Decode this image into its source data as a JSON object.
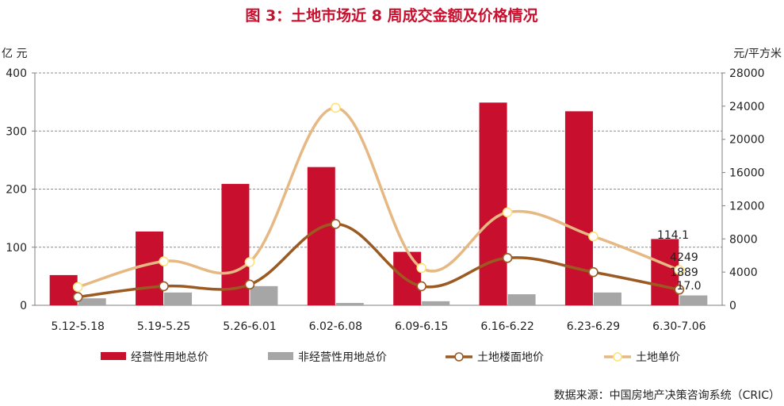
{
  "chart_data": {
    "type": "bar",
    "title": "图 3：土地市场近 8 周成交金额及价格情况",
    "left_unit": "亿 元",
    "right_unit": "元/平方米",
    "categories": [
      "5.12-5.18",
      "5.19-5.25",
      "5.26-6.01",
      "6.02-6.08",
      "6.09-6.15",
      "6.16-6.22",
      "6.23-6.29",
      "6.30-7.06"
    ],
    "ylim_left": [
      0,
      400
    ],
    "yticks_left": [
      0,
      100,
      200,
      300,
      400
    ],
    "ylim_right": [
      0,
      28000
    ],
    "yticks_right": [
      0,
      4000,
      8000,
      12000,
      16000,
      20000,
      24000,
      28000
    ],
    "grid": "horizontal-dashed",
    "legend_position": "bottom",
    "series": [
      {
        "name": "经营性用地总价",
        "kind": "bar",
        "axis": "left",
        "color": "#c8102e",
        "values": [
          52,
          127,
          209,
          238,
          92,
          349,
          334,
          114.1
        ]
      },
      {
        "name": "非经营性用地总价",
        "kind": "bar",
        "axis": "left",
        "color": "#a6a6a6",
        "values": [
          12,
          22,
          33,
          4,
          7,
          19,
          22,
          17.0
        ]
      },
      {
        "name": "土地楼面地价",
        "kind": "line",
        "axis": "right",
        "color": "#9c5a23",
        "values": [
          1000,
          2300,
          2500,
          9800,
          2300,
          5700,
          4000,
          1889
        ]
      },
      {
        "name": "土地单价",
        "kind": "line",
        "axis": "right",
        "color": "#e6b883",
        "values": [
          2200,
          5300,
          5200,
          23800,
          4500,
          11200,
          8300,
          4249
        ]
      }
    ],
    "data_labels": [
      {
        "series": 0,
        "index": 7,
        "text": "114.1"
      },
      {
        "series": 3,
        "index": 7,
        "text": "4249"
      },
      {
        "series": 2,
        "index": 7,
        "text": "1889"
      },
      {
        "series": 1,
        "index": 7,
        "text": "17.0"
      }
    ],
    "source": "数据来源：中国房地产决策咨询系统（CRIC）"
  }
}
